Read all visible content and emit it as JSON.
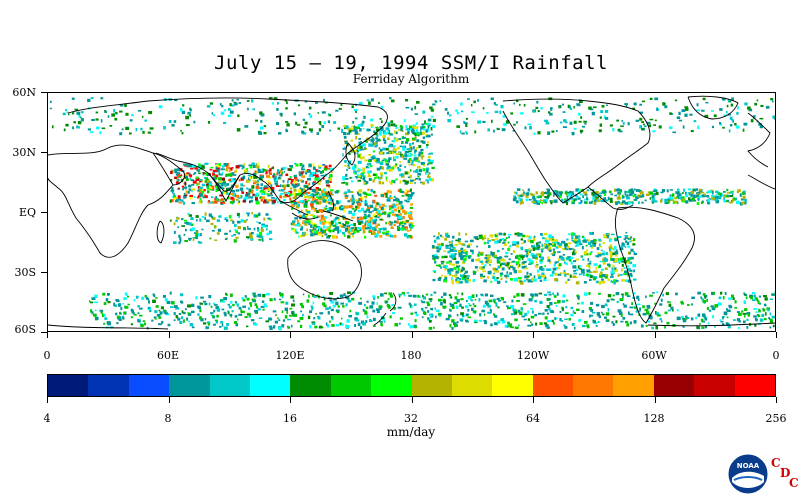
{
  "header": {
    "title": "July 15 – 19, 1994 SSM/I Rainfall",
    "subtitle": "Ferriday Algorithm"
  },
  "map": {
    "lat_labels": [
      "60N",
      "30N",
      "EQ",
      "30S",
      "60S"
    ],
    "lon_labels": [
      "0",
      "60E",
      "120E",
      "180",
      "120W",
      "60W",
      "0"
    ],
    "lat_range": [
      -60,
      60
    ],
    "lon_range": [
      0,
      360
    ],
    "rain_bands": [
      {
        "region": "ITCZ Atlantic/Eastern Pacific",
        "intensity": "moderate"
      },
      {
        "region": "South Asian monsoon / Bay of Bengal",
        "intensity": "heavy"
      },
      {
        "region": "Western Pacific warm pool",
        "intensity": "heavy"
      },
      {
        "region": "South Pacific Convergence Zone",
        "intensity": "moderate"
      },
      {
        "region": "Southern Ocean storm track",
        "intensity": "light"
      }
    ]
  },
  "colorbar": {
    "colors": [
      "#001a7a",
      "#0032b4",
      "#0a4cff",
      "#00969a",
      "#00c8c8",
      "#00ffff",
      "#008c00",
      "#00c800",
      "#00ff00",
      "#b4b400",
      "#dcdc00",
      "#ffff00",
      "#ff5000",
      "#ff7800",
      "#ffa000",
      "#960000",
      "#c80000",
      "#ff0000"
    ],
    "tick_labels": [
      "4",
      "8",
      "16",
      "32",
      "64",
      "128",
      "256"
    ],
    "units": "mm/day"
  },
  "logo": {
    "noaa_text": "NOAA",
    "cdc_letters": [
      "C",
      "D",
      "C"
    ]
  }
}
